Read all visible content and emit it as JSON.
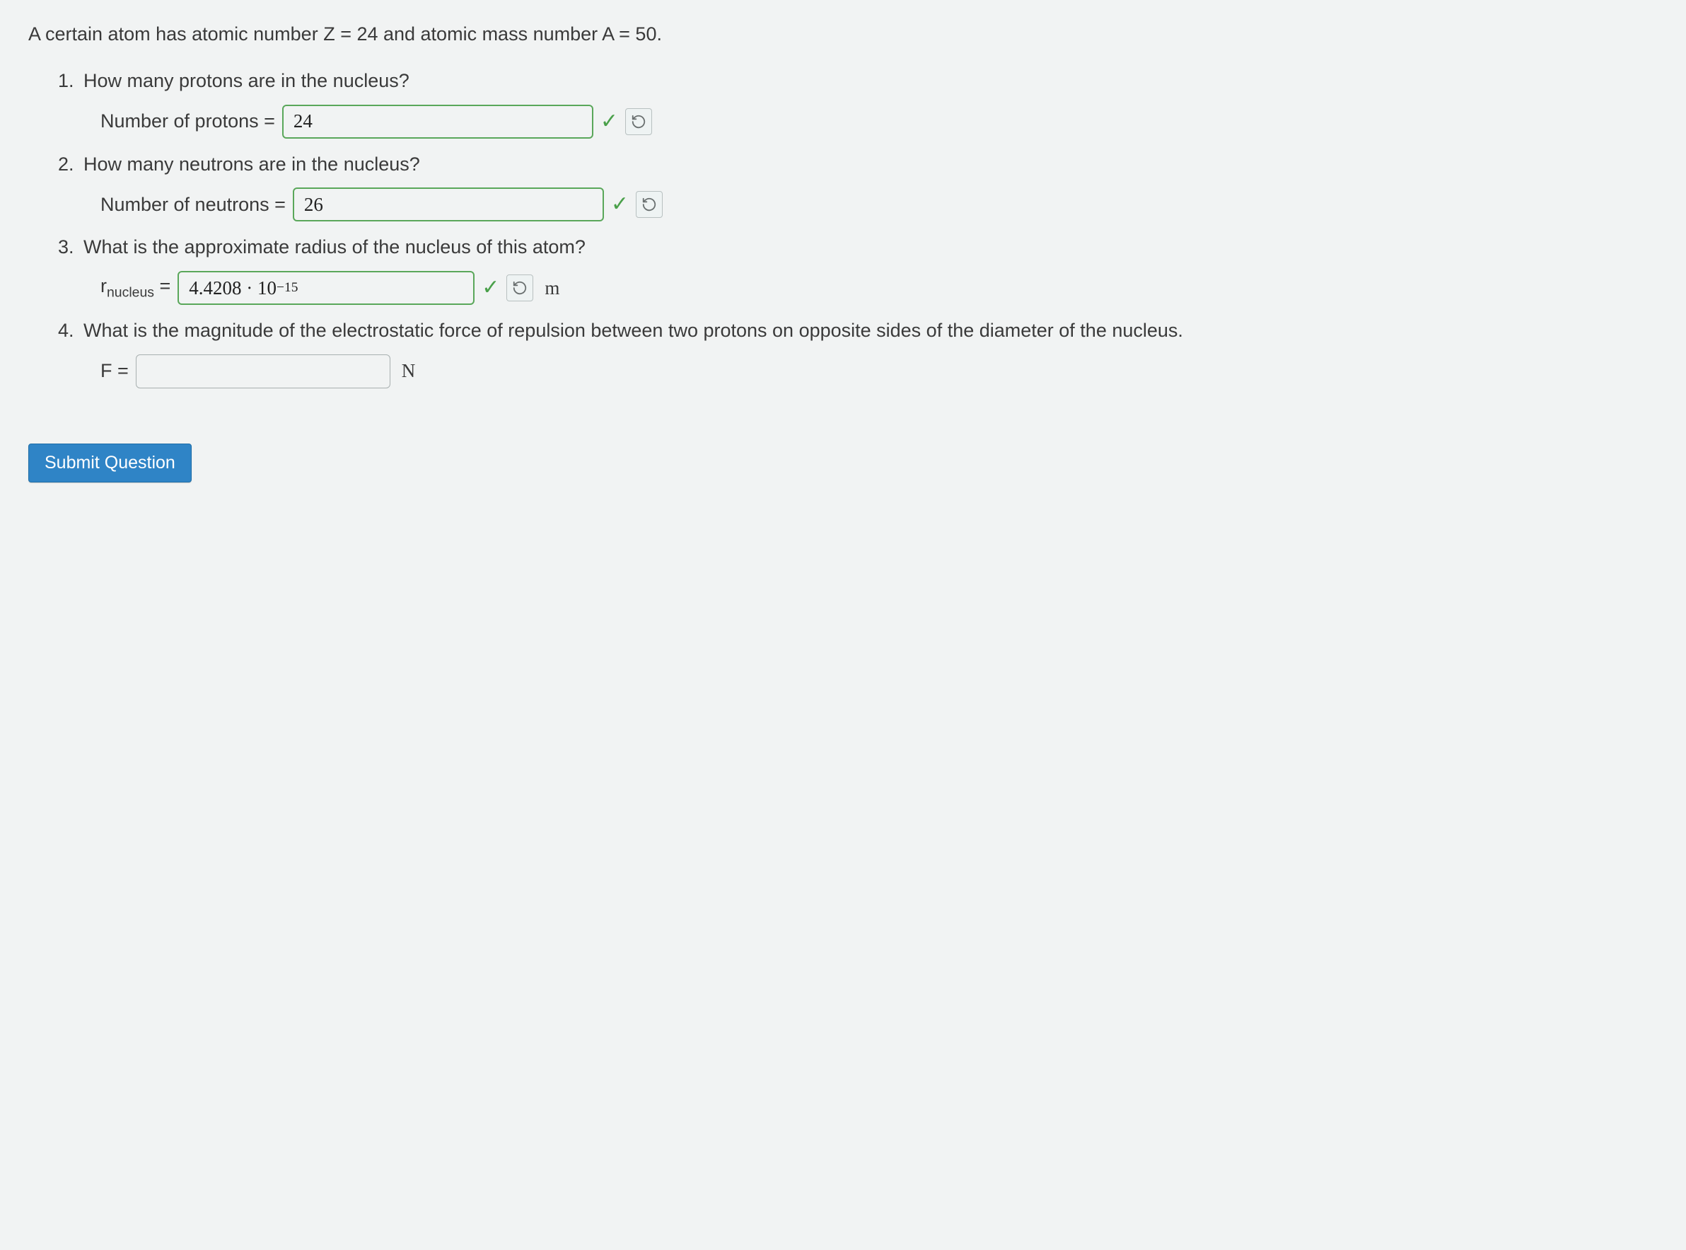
{
  "colors": {
    "background": "#f1f3f3",
    "text": "#3a3a3a",
    "input_border_correct": "#5aa75a",
    "input_border_blank": "#a8b0b0",
    "checkmark": "#4aa04a",
    "button_bg": "#2f84c6",
    "button_text": "#ffffff",
    "retry_border": "#b8c0c0",
    "retry_icon": "#6a7070"
  },
  "prompt": "A certain atom has atomic number Z = 24 and atomic mass number A = 50.",
  "questions": [
    {
      "text": "How many protons are in the nucleus?",
      "label_prefix": "Number of protons = ",
      "value": "24",
      "correct": true,
      "has_retry": true,
      "unit": "",
      "box_class": "w-lg"
    },
    {
      "text": "How many neutrons are in the nucleus?",
      "label_prefix": "Number of neutrons = ",
      "value": "26",
      "correct": true,
      "has_retry": true,
      "unit": "",
      "box_class": "w-lg"
    },
    {
      "text": "What is the approximate radius of the nucleus of this atom?",
      "label_prefix_html": "r<span class='sub'>nucleus</span> = ",
      "value_html": "4.4208 · 10<span class='sup'>−15</span>",
      "correct": true,
      "has_retry": true,
      "unit": "m",
      "box_class": "w-md"
    },
    {
      "text": "What is the magnitude of the electrostatic force of repulsion between two protons on opposite sides of the diameter of the nucleus.",
      "label_prefix": "F = ",
      "value": "",
      "correct": false,
      "blank": true,
      "has_retry": false,
      "unit": "N",
      "box_class": ""
    }
  ],
  "submit_label": "Submit Question"
}
